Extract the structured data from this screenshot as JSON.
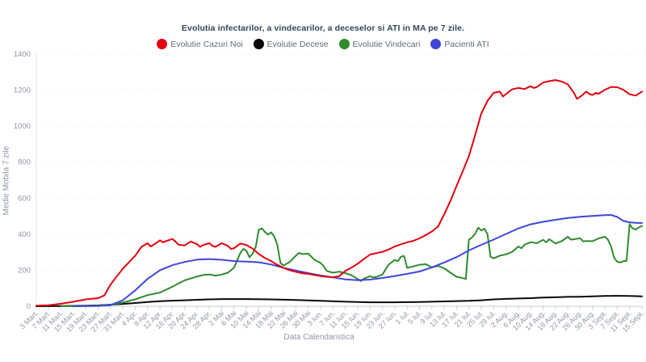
{
  "chart_data": {
    "type": "line",
    "title": "Evolutia infectarilor, a vindecarilor, a deceselor si ATI in MA pe 7 zile.",
    "xlabel": "Data Calendaristica",
    "ylabel": "Medie Mobila 7 zile",
    "ylim": [
      0,
      1400
    ],
    "ytick_step": 200,
    "x_days_range": [
      0,
      196
    ],
    "grid": "horizontal-dotted",
    "legend_position": "top",
    "categories": [
      "3 Mart.",
      "7 Mart.",
      "11 Mart.",
      "15 Mart.",
      "19 Mart.",
      "23 Mart.",
      "27 Mart.",
      "31 Mart.",
      "4 Apr.",
      "8 Apr.",
      "12 Apr.",
      "16 Apr.",
      "20 Apr.",
      "24 Apr.",
      "28 Apr.",
      "2 Mai",
      "6 Mai",
      "10 Mai",
      "14 Mai",
      "18 Mai",
      "22 Mai",
      "26 Mai",
      "30 Mai",
      "3 Iun.",
      "7 Iun.",
      "11 Iun.",
      "15 Iun.",
      "19 Iun.",
      "23 Iun.",
      "27 Iun.",
      "1 Iul.",
      "5 Iul.",
      "9 Iul.",
      "13 Iul.",
      "17 Iul.",
      "21 Iul.",
      "25 Iul.",
      "29 Iul.",
      "2 Aug.",
      "6 Aug.",
      "10 Aug.",
      "14 Aug.",
      "18 Aug.",
      "22 Aug.",
      "26 Aug.",
      "30 Aug.",
      "3 Sept.",
      "7 Sept.",
      "11 Sept.",
      "15 Sept."
    ],
    "series": [
      {
        "name": "Evolutie Cazuri Noi",
        "color": "#e3000f",
        "points": [
          [
            0,
            3
          ],
          [
            4,
            6
          ],
          [
            8,
            14
          ],
          [
            12,
            25
          ],
          [
            16,
            38
          ],
          [
            20,
            45
          ],
          [
            22,
            60
          ],
          [
            24,
            120
          ],
          [
            26,
            165
          ],
          [
            28,
            208
          ],
          [
            32,
            280
          ],
          [
            34,
            330
          ],
          [
            36,
            350
          ],
          [
            37,
            332
          ],
          [
            38,
            342
          ],
          [
            40,
            366
          ],
          [
            41,
            355
          ],
          [
            42,
            362
          ],
          [
            44,
            374
          ],
          [
            45,
            360
          ],
          [
            46,
            342
          ],
          [
            48,
            338
          ],
          [
            50,
            360
          ],
          [
            51,
            352
          ],
          [
            52,
            345
          ],
          [
            53,
            330
          ],
          [
            54,
            340
          ],
          [
            56,
            350
          ],
          [
            57,
            335
          ],
          [
            58,
            330
          ],
          [
            60,
            350
          ],
          [
            62,
            335
          ],
          [
            63,
            318
          ],
          [
            64,
            322
          ],
          [
            66,
            348
          ],
          [
            68,
            340
          ],
          [
            70,
            320
          ],
          [
            72,
            290
          ],
          [
            74,
            268
          ],
          [
            76,
            250
          ],
          [
            78,
            230
          ],
          [
            80,
            213
          ],
          [
            82,
            200
          ],
          [
            84,
            191
          ],
          [
            86,
            183
          ],
          [
            88,
            180
          ],
          [
            90,
            173
          ],
          [
            92,
            168
          ],
          [
            94,
            164
          ],
          [
            96,
            161
          ],
          [
            98,
            167
          ],
          [
            100,
            196
          ],
          [
            102,
            215
          ],
          [
            104,
            236
          ],
          [
            106,
            262
          ],
          [
            108,
            287
          ],
          [
            110,
            295
          ],
          [
            112,
            302
          ],
          [
            114,
            315
          ],
          [
            116,
            332
          ],
          [
            118,
            344
          ],
          [
            120,
            355
          ],
          [
            122,
            363
          ],
          [
            124,
            377
          ],
          [
            126,
            395
          ],
          [
            128,
            415
          ],
          [
            130,
            442
          ],
          [
            132,
            510
          ],
          [
            134,
            585
          ],
          [
            136,
            668
          ],
          [
            138,
            750
          ],
          [
            140,
            834
          ],
          [
            142,
            950
          ],
          [
            144,
            1070
          ],
          [
            146,
            1140
          ],
          [
            148,
            1185
          ],
          [
            150,
            1192
          ],
          [
            151,
            1165
          ],
          [
            152,
            1178
          ],
          [
            154,
            1205
          ],
          [
            156,
            1212
          ],
          [
            158,
            1206
          ],
          [
            160,
            1222
          ],
          [
            161,
            1212
          ],
          [
            162,
            1218
          ],
          [
            164,
            1242
          ],
          [
            166,
            1250
          ],
          [
            168,
            1256
          ],
          [
            170,
            1248
          ],
          [
            172,
            1232
          ],
          [
            174,
            1185
          ],
          [
            175,
            1152
          ],
          [
            176,
            1163
          ],
          [
            178,
            1192
          ],
          [
            179,
            1178
          ],
          [
            180,
            1173
          ],
          [
            181,
            1185
          ],
          [
            182,
            1180
          ],
          [
            184,
            1202
          ],
          [
            186,
            1218
          ],
          [
            188,
            1216
          ],
          [
            190,
            1202
          ],
          [
            192,
            1177
          ],
          [
            194,
            1170
          ],
          [
            196,
            1192
          ]
        ]
      },
      {
        "name": "Evolutie Decese",
        "color": "#0a0a0a",
        "points": [
          [
            0,
            0
          ],
          [
            8,
            1
          ],
          [
            16,
            3
          ],
          [
            20,
            5
          ],
          [
            24,
            9
          ],
          [
            28,
            13
          ],
          [
            32,
            18
          ],
          [
            36,
            24
          ],
          [
            40,
            28
          ],
          [
            44,
            31
          ],
          [
            48,
            33
          ],
          [
            52,
            36
          ],
          [
            56,
            38
          ],
          [
            60,
            40
          ],
          [
            68,
            40
          ],
          [
            76,
            38
          ],
          [
            84,
            35
          ],
          [
            92,
            30
          ],
          [
            100,
            25
          ],
          [
            108,
            22
          ],
          [
            116,
            22
          ],
          [
            124,
            24
          ],
          [
            132,
            27
          ],
          [
            140,
            30
          ],
          [
            144,
            33
          ],
          [
            148,
            38
          ],
          [
            152,
            41
          ],
          [
            156,
            43
          ],
          [
            160,
            45
          ],
          [
            164,
            48
          ],
          [
            168,
            50
          ],
          [
            172,
            52
          ],
          [
            176,
            53
          ],
          [
            180,
            55
          ],
          [
            184,
            57
          ],
          [
            188,
            58
          ],
          [
            192,
            57
          ],
          [
            196,
            55
          ]
        ]
      },
      {
        "name": "Evolutie Vindecari",
        "color": "#2e8b2e",
        "points": [
          [
            8,
            0
          ],
          [
            16,
            2
          ],
          [
            20,
            3
          ],
          [
            24,
            8
          ],
          [
            26,
            14
          ],
          [
            28,
            20
          ],
          [
            32,
            38
          ],
          [
            36,
            62
          ],
          [
            40,
            76
          ],
          [
            44,
            108
          ],
          [
            48,
            144
          ],
          [
            52,
            165
          ],
          [
            54,
            173
          ],
          [
            56,
            177
          ],
          [
            58,
            170
          ],
          [
            60,
            176
          ],
          [
            62,
            186
          ],
          [
            64,
            215
          ],
          [
            65,
            255
          ],
          [
            66,
            296
          ],
          [
            67,
            318
          ],
          [
            68,
            308
          ],
          [
            69,
            272
          ],
          [
            70,
            292
          ],
          [
            71,
            330
          ],
          [
            72,
            425
          ],
          [
            73,
            432
          ],
          [
            74,
            412
          ],
          [
            75,
            398
          ],
          [
            76,
            410
          ],
          [
            77,
            388
          ],
          [
            78,
            340
          ],
          [
            79,
            240
          ],
          [
            80,
            226
          ],
          [
            82,
            246
          ],
          [
            84,
            281
          ],
          [
            85,
            296
          ],
          [
            86,
            290
          ],
          [
            88,
            292
          ],
          [
            90,
            258
          ],
          [
            92,
            241
          ],
          [
            93,
            222
          ],
          [
            94,
            196
          ],
          [
            96,
            186
          ],
          [
            98,
            192
          ],
          [
            100,
            184
          ],
          [
            102,
            172
          ],
          [
            104,
            151
          ],
          [
            105,
            140
          ],
          [
            106,
            153
          ],
          [
            108,
            167
          ],
          [
            109,
            160
          ],
          [
            110,
            163
          ],
          [
            112,
            176
          ],
          [
            114,
            231
          ],
          [
            116,
            257
          ],
          [
            117,
            250
          ],
          [
            118,
            275
          ],
          [
            119,
            279
          ],
          [
            120,
            213
          ],
          [
            122,
            221
          ],
          [
            124,
            230
          ],
          [
            126,
            234
          ],
          [
            128,
            216
          ],
          [
            130,
            224
          ],
          [
            132,
            211
          ],
          [
            134,
            186
          ],
          [
            136,
            164
          ],
          [
            138,
            156
          ],
          [
            139,
            151
          ],
          [
            140,
            370
          ],
          [
            141,
            382
          ],
          [
            142,
            402
          ],
          [
            143,
            436
          ],
          [
            144,
            421
          ],
          [
            145,
            431
          ],
          [
            146,
            400
          ],
          [
            147,
            274
          ],
          [
            148,
            266
          ],
          [
            150,
            281
          ],
          [
            152,
            288
          ],
          [
            154,
            302
          ],
          [
            156,
            332
          ],
          [
            157,
            322
          ],
          [
            158,
            342
          ],
          [
            160,
            356
          ],
          [
            162,
            350
          ],
          [
            164,
            369
          ],
          [
            165,
            355
          ],
          [
            166,
            372
          ],
          [
            168,
            348
          ],
          [
            170,
            361
          ],
          [
            172,
            386
          ],
          [
            173,
            370
          ],
          [
            174,
            372
          ],
          [
            176,
            378
          ],
          [
            177,
            360
          ],
          [
            178,
            362
          ],
          [
            180,
            361
          ],
          [
            182,
            377
          ],
          [
            184,
            386
          ],
          [
            185,
            370
          ],
          [
            186,
            332
          ],
          [
            187,
            268
          ],
          [
            188,
            247
          ],
          [
            189,
            243
          ],
          [
            190,
            250
          ],
          [
            191,
            252
          ],
          [
            192,
            456
          ],
          [
            193,
            432
          ],
          [
            194,
            426
          ],
          [
            195,
            438
          ],
          [
            196,
            446
          ]
        ]
      },
      {
        "name": "Pacienti ATI",
        "color": "#3f46d8",
        "points": [
          [
            12,
            0
          ],
          [
            20,
            2
          ],
          [
            24,
            6
          ],
          [
            28,
            33
          ],
          [
            32,
            88
          ],
          [
            36,
            152
          ],
          [
            40,
            200
          ],
          [
            44,
            228
          ],
          [
            48,
            246
          ],
          [
            52,
            259
          ],
          [
            56,
            262
          ],
          [
            60,
            258
          ],
          [
            64,
            251
          ],
          [
            68,
            248
          ],
          [
            72,
            244
          ],
          [
            76,
            232
          ],
          [
            80,
            213
          ],
          [
            84,
            198
          ],
          [
            88,
            184
          ],
          [
            92,
            171
          ],
          [
            96,
            160
          ],
          [
            100,
            149
          ],
          [
            104,
            145
          ],
          [
            108,
            148
          ],
          [
            112,
            157
          ],
          [
            116,
            168
          ],
          [
            120,
            180
          ],
          [
            124,
            193
          ],
          [
            128,
            216
          ],
          [
            132,
            243
          ],
          [
            136,
            273
          ],
          [
            140,
            310
          ],
          [
            144,
            341
          ],
          [
            148,
            370
          ],
          [
            152,
            401
          ],
          [
            156,
            432
          ],
          [
            160,
            455
          ],
          [
            164,
            469
          ],
          [
            168,
            480
          ],
          [
            172,
            490
          ],
          [
            176,
            497
          ],
          [
            180,
            501
          ],
          [
            184,
            506
          ],
          [
            186,
            507
          ],
          [
            188,
            496
          ],
          [
            190,
            474
          ],
          [
            192,
            466
          ],
          [
            194,
            463
          ],
          [
            196,
            462
          ]
        ]
      }
    ]
  }
}
